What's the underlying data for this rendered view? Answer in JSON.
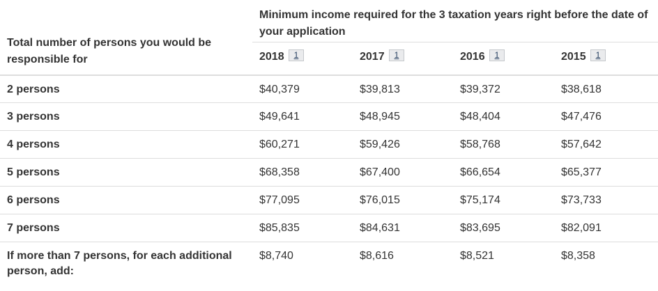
{
  "table": {
    "corner_header": "Total number of persons you would be responsible for",
    "group_header": "Minimum income required for the 3 taxation years right before the date of your application",
    "years": [
      {
        "label": "2018",
        "footnote": "1"
      },
      {
        "label": "2017",
        "footnote": "1"
      },
      {
        "label": "2016",
        "footnote": "1"
      },
      {
        "label": "2015",
        "footnote": "1"
      }
    ],
    "rows": [
      {
        "label": "2 persons",
        "values": [
          "$40,379",
          "$39,813",
          "$39,372",
          "$38,618"
        ]
      },
      {
        "label": "3 persons",
        "values": [
          "$49,641",
          "$48,945",
          "$48,404",
          "$47,476"
        ]
      },
      {
        "label": "4 persons",
        "values": [
          "$60,271",
          "$59,426",
          "$58,768",
          "$57,642"
        ]
      },
      {
        "label": "5 persons",
        "values": [
          "$68,358",
          "$67,400",
          "$66,654",
          "$65,377"
        ]
      },
      {
        "label": "6 persons",
        "values": [
          "$77,095",
          "$76,015",
          "$75,174",
          "$73,733"
        ]
      },
      {
        "label": "7 persons",
        "values": [
          "$85,835",
          "$84,631",
          "$83,695",
          "$82,091"
        ]
      },
      {
        "label": "If more than 7 persons, for each additional person, add:",
        "values": [
          "$8,740",
          "$8,616",
          "$8,521",
          "$8,358"
        ]
      }
    ]
  }
}
